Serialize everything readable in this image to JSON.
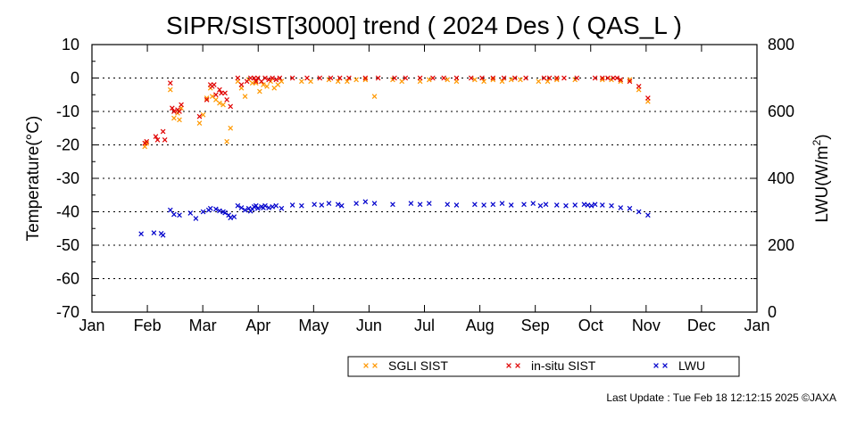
{
  "chart_data": {
    "type": "scatter",
    "title": "SIPR/SIST[3000] trend ( 2024 Des ) ( QAS_L )",
    "ylabel": "Temperature(°C)",
    "y2label_main": "LWU(W/m",
    "y2label_sup": "2",
    "y2label_end": ")",
    "ylim": [
      -70,
      10
    ],
    "y2lim": [
      0,
      800
    ],
    "yticks": [
      10,
      0,
      -10,
      -20,
      -30,
      -40,
      -50,
      -60,
      -70
    ],
    "y2ticks": [
      800,
      600,
      400,
      200,
      0
    ],
    "grid": "horizontal dotted",
    "xlabels": [
      "Jan",
      "Feb",
      "Mar",
      "Apr",
      "May",
      "Jun",
      "Jul",
      "Aug",
      "Sep",
      "Oct",
      "Nov",
      "Dec",
      "Jan"
    ],
    "colors": {
      "sgli": "#ff9900",
      "insitu": "#e00000",
      "lwu": "#0000cc"
    },
    "legend": [
      {
        "name": "SGLI SIST",
        "key": "sgli"
      },
      {
        "name": "in-situ SIST",
        "key": "insitu"
      },
      {
        "name": "LWU",
        "key": "lwu"
      }
    ],
    "series": [
      {
        "key": "sgli",
        "x": [
          29,
          30,
          43,
          45,
          47,
          48,
          49,
          59,
          61,
          63,
          65,
          66,
          68,
          70,
          72,
          74,
          76,
          80,
          82,
          84,
          86,
          88,
          90,
          92,
          94,
          96,
          98,
          100,
          102,
          104,
          115,
          120,
          130,
          135,
          140,
          145,
          150,
          155,
          165,
          170,
          180,
          185,
          195,
          200,
          210,
          215,
          220,
          225,
          230,
          235,
          245,
          250,
          255,
          265,
          280,
          285,
          290,
          295,
          300,
          305
        ],
        "y": [
          -20.5,
          -19.5,
          -3.5,
          -12,
          -10.5,
          -12.5,
          -9,
          -13.5,
          -11,
          -6,
          -3,
          -5.5,
          -6.5,
          -7.5,
          -8,
          -19,
          -15,
          -1,
          -3,
          -5.5,
          -0.5,
          -1.5,
          -1.5,
          -4,
          -2,
          -2.5,
          -1,
          -3,
          -2,
          -1,
          -1,
          -1,
          -0.5,
          -1,
          -1,
          -0.5,
          -0.5,
          -5.5,
          -0.5,
          -1,
          -1,
          -0.5,
          -0.5,
          -1,
          -0.5,
          -1,
          -0.5,
          -1,
          -0.5,
          -0.5,
          -1,
          -1,
          -0.5,
          -0.5,
          -0.5,
          -0.5,
          -1,
          -0.5,
          -3.5,
          -7
        ]
      },
      {
        "key": "insitu",
        "x": [
          29,
          30,
          35,
          36,
          39,
          40,
          43,
          44,
          45,
          47,
          48,
          49,
          59,
          63,
          65,
          66,
          67,
          68,
          70,
          71,
          73,
          74,
          76,
          80,
          82,
          85,
          87,
          89,
          90,
          91,
          93,
          95,
          97,
          99,
          101,
          103,
          110,
          118,
          125,
          131,
          136,
          141,
          150,
          157,
          166,
          172,
          180,
          187,
          193,
          200,
          208,
          214,
          220,
          226,
          232,
          238,
          248,
          251,
          255,
          259,
          266,
          276,
          280,
          283,
          286,
          288,
          290,
          295,
          300,
          305
        ],
        "y": [
          -19.5,
          -19,
          -17.5,
          -18.5,
          -16,
          -18.5,
          -1.5,
          -9,
          -10,
          -9.5,
          -10,
          -8,
          -11.5,
          -6.5,
          -2,
          -2.5,
          -2,
          -5,
          -3.5,
          -4.5,
          -4.5,
          -6.5,
          -8.5,
          0,
          -2,
          -1,
          0,
          0,
          -1,
          0,
          -1,
          0,
          -0.5,
          0,
          -0.5,
          0,
          0,
          0,
          0,
          0,
          0,
          0,
          0,
          0,
          0,
          0,
          0,
          0,
          0,
          0,
          0,
          0,
          0,
          0,
          0,
          0,
          0,
          0,
          0,
          0,
          0,
          0,
          0,
          0,
          0,
          0,
          -0.5,
          -1,
          -2.5,
          -6
        ]
      },
      {
        "key": "lwu",
        "x": [
          27,
          34,
          38,
          39,
          43,
          45,
          48,
          54,
          57,
          61,
          64,
          65,
          68,
          70,
          72,
          73,
          75,
          76,
          78,
          80,
          82,
          84,
          86,
          87,
          88,
          89,
          90,
          91,
          93,
          94,
          95,
          97,
          99,
          101,
          104,
          110,
          115,
          122,
          126,
          130,
          135,
          137,
          145,
          150,
          155,
          165,
          175,
          180,
          185,
          195,
          200,
          210,
          215,
          220,
          225,
          230,
          237,
          242,
          246,
          249,
          255,
          260,
          265,
          270,
          272,
          274,
          276,
          280,
          285,
          290,
          295,
          300,
          305
        ],
        "y": [
          234,
          237,
          235,
          230,
          305,
          292,
          290,
          296,
          280,
          300,
          305,
          310,
          308,
          303,
          300,
          297,
          290,
          282,
          285,
          318,
          312,
          305,
          310,
          302,
          308,
          315,
          318,
          310,
          315,
          312,
          318,
          312,
          315,
          318,
          310,
          320,
          318,
          322,
          320,
          325,
          322,
          318,
          325,
          330,
          325,
          322,
          325,
          322,
          325,
          322,
          320,
          322,
          320,
          322,
          325,
          320,
          322,
          325,
          318,
          322,
          320,
          318,
          320,
          322,
          320,
          318,
          322,
          320,
          318,
          312,
          310,
          300,
          290
        ]
      }
    ]
  },
  "footer": {
    "text": "Last Update : Tue Feb 18 12:12:15 2025  ©JAXA"
  }
}
